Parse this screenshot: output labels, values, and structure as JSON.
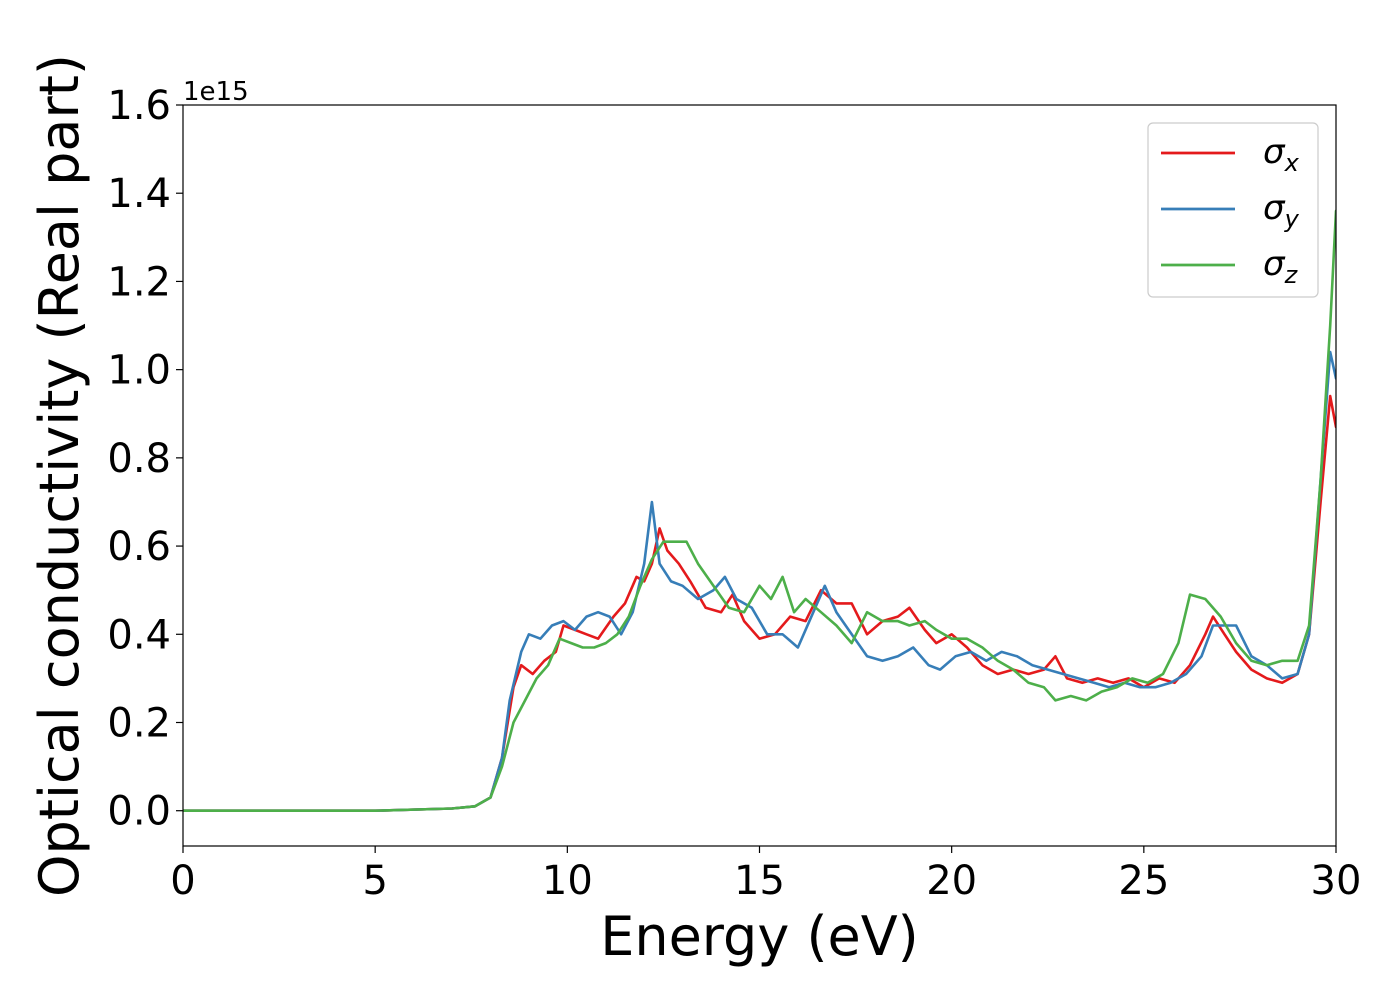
{
  "chart_data": {
    "type": "line",
    "title": "",
    "xlabel": "Energy (eV)",
    "ylabel": "Optical conductivity (Real part)",
    "y_offset_label": "1e15",
    "xlim": [
      0,
      30
    ],
    "ylim": [
      -0.08,
      1.6
    ],
    "x_ticks": [
      0,
      5,
      10,
      15,
      20,
      25,
      30
    ],
    "x_tick_labels": [
      "0",
      "5",
      "10",
      "15",
      "20",
      "25",
      "30"
    ],
    "y_ticks": [
      0.0,
      0.2,
      0.4,
      0.6,
      0.8,
      1.0,
      1.2,
      1.4,
      1.6
    ],
    "y_tick_labels": [
      "0.0",
      "0.2",
      "0.4",
      "0.6",
      "0.8",
      "1.0",
      "1.2",
      "1.4",
      "1.6"
    ],
    "grid": false,
    "legend_position": "top-right",
    "series": [
      {
        "name": "σx",
        "legend_symbol": "σ",
        "legend_subscript": "x",
        "color": "#e41a1c",
        "points": [
          [
            0,
            0
          ],
          [
            5,
            0.0
          ],
          [
            7,
            0.005
          ],
          [
            7.6,
            0.01
          ],
          [
            8.0,
            0.03
          ],
          [
            8.3,
            0.12
          ],
          [
            8.6,
            0.28
          ],
          [
            8.8,
            0.33
          ],
          [
            9.1,
            0.31
          ],
          [
            9.4,
            0.34
          ],
          [
            9.7,
            0.36
          ],
          [
            9.9,
            0.42
          ],
          [
            10.2,
            0.41
          ],
          [
            10.5,
            0.4
          ],
          [
            10.8,
            0.39
          ],
          [
            11.2,
            0.44
          ],
          [
            11.5,
            0.47
          ],
          [
            11.8,
            0.53
          ],
          [
            12.0,
            0.52
          ],
          [
            12.2,
            0.56
          ],
          [
            12.4,
            0.64
          ],
          [
            12.6,
            0.59
          ],
          [
            12.9,
            0.56
          ],
          [
            13.2,
            0.52
          ],
          [
            13.6,
            0.46
          ],
          [
            14.0,
            0.45
          ],
          [
            14.3,
            0.49
          ],
          [
            14.6,
            0.43
          ],
          [
            15.0,
            0.39
          ],
          [
            15.4,
            0.4
          ],
          [
            15.8,
            0.44
          ],
          [
            16.2,
            0.43
          ],
          [
            16.6,
            0.5
          ],
          [
            17.0,
            0.47
          ],
          [
            17.4,
            0.47
          ],
          [
            17.8,
            0.4
          ],
          [
            18.2,
            0.43
          ],
          [
            18.6,
            0.44
          ],
          [
            18.9,
            0.46
          ],
          [
            19.3,
            0.41
          ],
          [
            19.6,
            0.38
          ],
          [
            20.0,
            0.4
          ],
          [
            20.4,
            0.37
          ],
          [
            20.8,
            0.33
          ],
          [
            21.2,
            0.31
          ],
          [
            21.6,
            0.32
          ],
          [
            22.0,
            0.31
          ],
          [
            22.4,
            0.32
          ],
          [
            22.7,
            0.35
          ],
          [
            23.0,
            0.3
          ],
          [
            23.4,
            0.29
          ],
          [
            23.8,
            0.3
          ],
          [
            24.2,
            0.29
          ],
          [
            24.6,
            0.3
          ],
          [
            25.0,
            0.28
          ],
          [
            25.4,
            0.3
          ],
          [
            25.8,
            0.29
          ],
          [
            26.2,
            0.33
          ],
          [
            26.6,
            0.4
          ],
          [
            26.8,
            0.44
          ],
          [
            27.1,
            0.4
          ],
          [
            27.4,
            0.36
          ],
          [
            27.8,
            0.32
          ],
          [
            28.2,
            0.3
          ],
          [
            28.6,
            0.29
          ],
          [
            29.0,
            0.31
          ],
          [
            29.3,
            0.4
          ],
          [
            29.6,
            0.7
          ],
          [
            29.85,
            0.94
          ],
          [
            30.0,
            0.87
          ]
        ]
      },
      {
        "name": "σy",
        "legend_symbol": "σ",
        "legend_subscript": "y",
        "color": "#377eb8",
        "points": [
          [
            0,
            0
          ],
          [
            5,
            0.0
          ],
          [
            7,
            0.005
          ],
          [
            7.6,
            0.01
          ],
          [
            8.0,
            0.03
          ],
          [
            8.3,
            0.12
          ],
          [
            8.5,
            0.25
          ],
          [
            8.8,
            0.36
          ],
          [
            9.0,
            0.4
          ],
          [
            9.3,
            0.39
          ],
          [
            9.6,
            0.42
          ],
          [
            9.9,
            0.43
          ],
          [
            10.2,
            0.41
          ],
          [
            10.5,
            0.44
          ],
          [
            10.8,
            0.45
          ],
          [
            11.1,
            0.44
          ],
          [
            11.4,
            0.4
          ],
          [
            11.7,
            0.45
          ],
          [
            12.0,
            0.56
          ],
          [
            12.2,
            0.7
          ],
          [
            12.4,
            0.56
          ],
          [
            12.7,
            0.52
          ],
          [
            13.0,
            0.51
          ],
          [
            13.4,
            0.48
          ],
          [
            13.8,
            0.5
          ],
          [
            14.1,
            0.53
          ],
          [
            14.4,
            0.48
          ],
          [
            14.8,
            0.46
          ],
          [
            15.2,
            0.4
          ],
          [
            15.6,
            0.4
          ],
          [
            16.0,
            0.37
          ],
          [
            16.4,
            0.45
          ],
          [
            16.7,
            0.51
          ],
          [
            17.0,
            0.45
          ],
          [
            17.4,
            0.4
          ],
          [
            17.8,
            0.35
          ],
          [
            18.2,
            0.34
          ],
          [
            18.6,
            0.35
          ],
          [
            19.0,
            0.37
          ],
          [
            19.4,
            0.33
          ],
          [
            19.7,
            0.32
          ],
          [
            20.1,
            0.35
          ],
          [
            20.5,
            0.36
          ],
          [
            20.9,
            0.34
          ],
          [
            21.3,
            0.36
          ],
          [
            21.7,
            0.35
          ],
          [
            22.1,
            0.33
          ],
          [
            22.5,
            0.32
          ],
          [
            22.9,
            0.31
          ],
          [
            23.3,
            0.3
          ],
          [
            23.7,
            0.29
          ],
          [
            24.1,
            0.28
          ],
          [
            24.5,
            0.29
          ],
          [
            24.9,
            0.28
          ],
          [
            25.3,
            0.28
          ],
          [
            25.7,
            0.29
          ],
          [
            26.1,
            0.31
          ],
          [
            26.5,
            0.35
          ],
          [
            26.8,
            0.42
          ],
          [
            27.1,
            0.42
          ],
          [
            27.4,
            0.42
          ],
          [
            27.8,
            0.35
          ],
          [
            28.2,
            0.33
          ],
          [
            28.6,
            0.3
          ],
          [
            29.0,
            0.31
          ],
          [
            29.3,
            0.4
          ],
          [
            29.6,
            0.75
          ],
          [
            29.85,
            1.04
          ],
          [
            30.0,
            0.98
          ]
        ]
      },
      {
        "name": "σz",
        "legend_symbol": "σ",
        "legend_subscript": "z",
        "color": "#4daf4a",
        "points": [
          [
            0,
            0
          ],
          [
            5,
            0.0
          ],
          [
            7,
            0.005
          ],
          [
            7.6,
            0.01
          ],
          [
            8.0,
            0.03
          ],
          [
            8.3,
            0.1
          ],
          [
            8.6,
            0.2
          ],
          [
            8.9,
            0.25
          ],
          [
            9.2,
            0.3
          ],
          [
            9.5,
            0.33
          ],
          [
            9.8,
            0.39
          ],
          [
            10.1,
            0.38
          ],
          [
            10.4,
            0.37
          ],
          [
            10.7,
            0.37
          ],
          [
            11.0,
            0.38
          ],
          [
            11.3,
            0.4
          ],
          [
            11.6,
            0.44
          ],
          [
            11.9,
            0.51
          ],
          [
            12.2,
            0.57
          ],
          [
            12.5,
            0.61
          ],
          [
            12.8,
            0.61
          ],
          [
            13.1,
            0.61
          ],
          [
            13.4,
            0.56
          ],
          [
            13.8,
            0.51
          ],
          [
            14.2,
            0.46
          ],
          [
            14.6,
            0.45
          ],
          [
            15.0,
            0.51
          ],
          [
            15.3,
            0.48
          ],
          [
            15.6,
            0.53
          ],
          [
            15.9,
            0.45
          ],
          [
            16.2,
            0.48
          ],
          [
            16.6,
            0.45
          ],
          [
            17.0,
            0.42
          ],
          [
            17.4,
            0.38
          ],
          [
            17.8,
            0.45
          ],
          [
            18.2,
            0.43
          ],
          [
            18.6,
            0.43
          ],
          [
            18.9,
            0.42
          ],
          [
            19.3,
            0.43
          ],
          [
            19.6,
            0.41
          ],
          [
            20.0,
            0.39
          ],
          [
            20.4,
            0.39
          ],
          [
            20.8,
            0.37
          ],
          [
            21.2,
            0.34
          ],
          [
            21.6,
            0.32
          ],
          [
            22.0,
            0.29
          ],
          [
            22.4,
            0.28
          ],
          [
            22.7,
            0.25
          ],
          [
            23.1,
            0.26
          ],
          [
            23.5,
            0.25
          ],
          [
            23.9,
            0.27
          ],
          [
            24.3,
            0.28
          ],
          [
            24.7,
            0.3
          ],
          [
            25.1,
            0.29
          ],
          [
            25.5,
            0.31
          ],
          [
            25.9,
            0.38
          ],
          [
            26.2,
            0.49
          ],
          [
            26.6,
            0.48
          ],
          [
            27.0,
            0.44
          ],
          [
            27.4,
            0.38
          ],
          [
            27.8,
            0.34
          ],
          [
            28.2,
            0.33
          ],
          [
            28.6,
            0.34
          ],
          [
            29.0,
            0.34
          ],
          [
            29.3,
            0.42
          ],
          [
            29.6,
            0.75
          ],
          [
            29.85,
            1.1
          ],
          [
            30.0,
            1.36
          ]
        ]
      }
    ]
  }
}
